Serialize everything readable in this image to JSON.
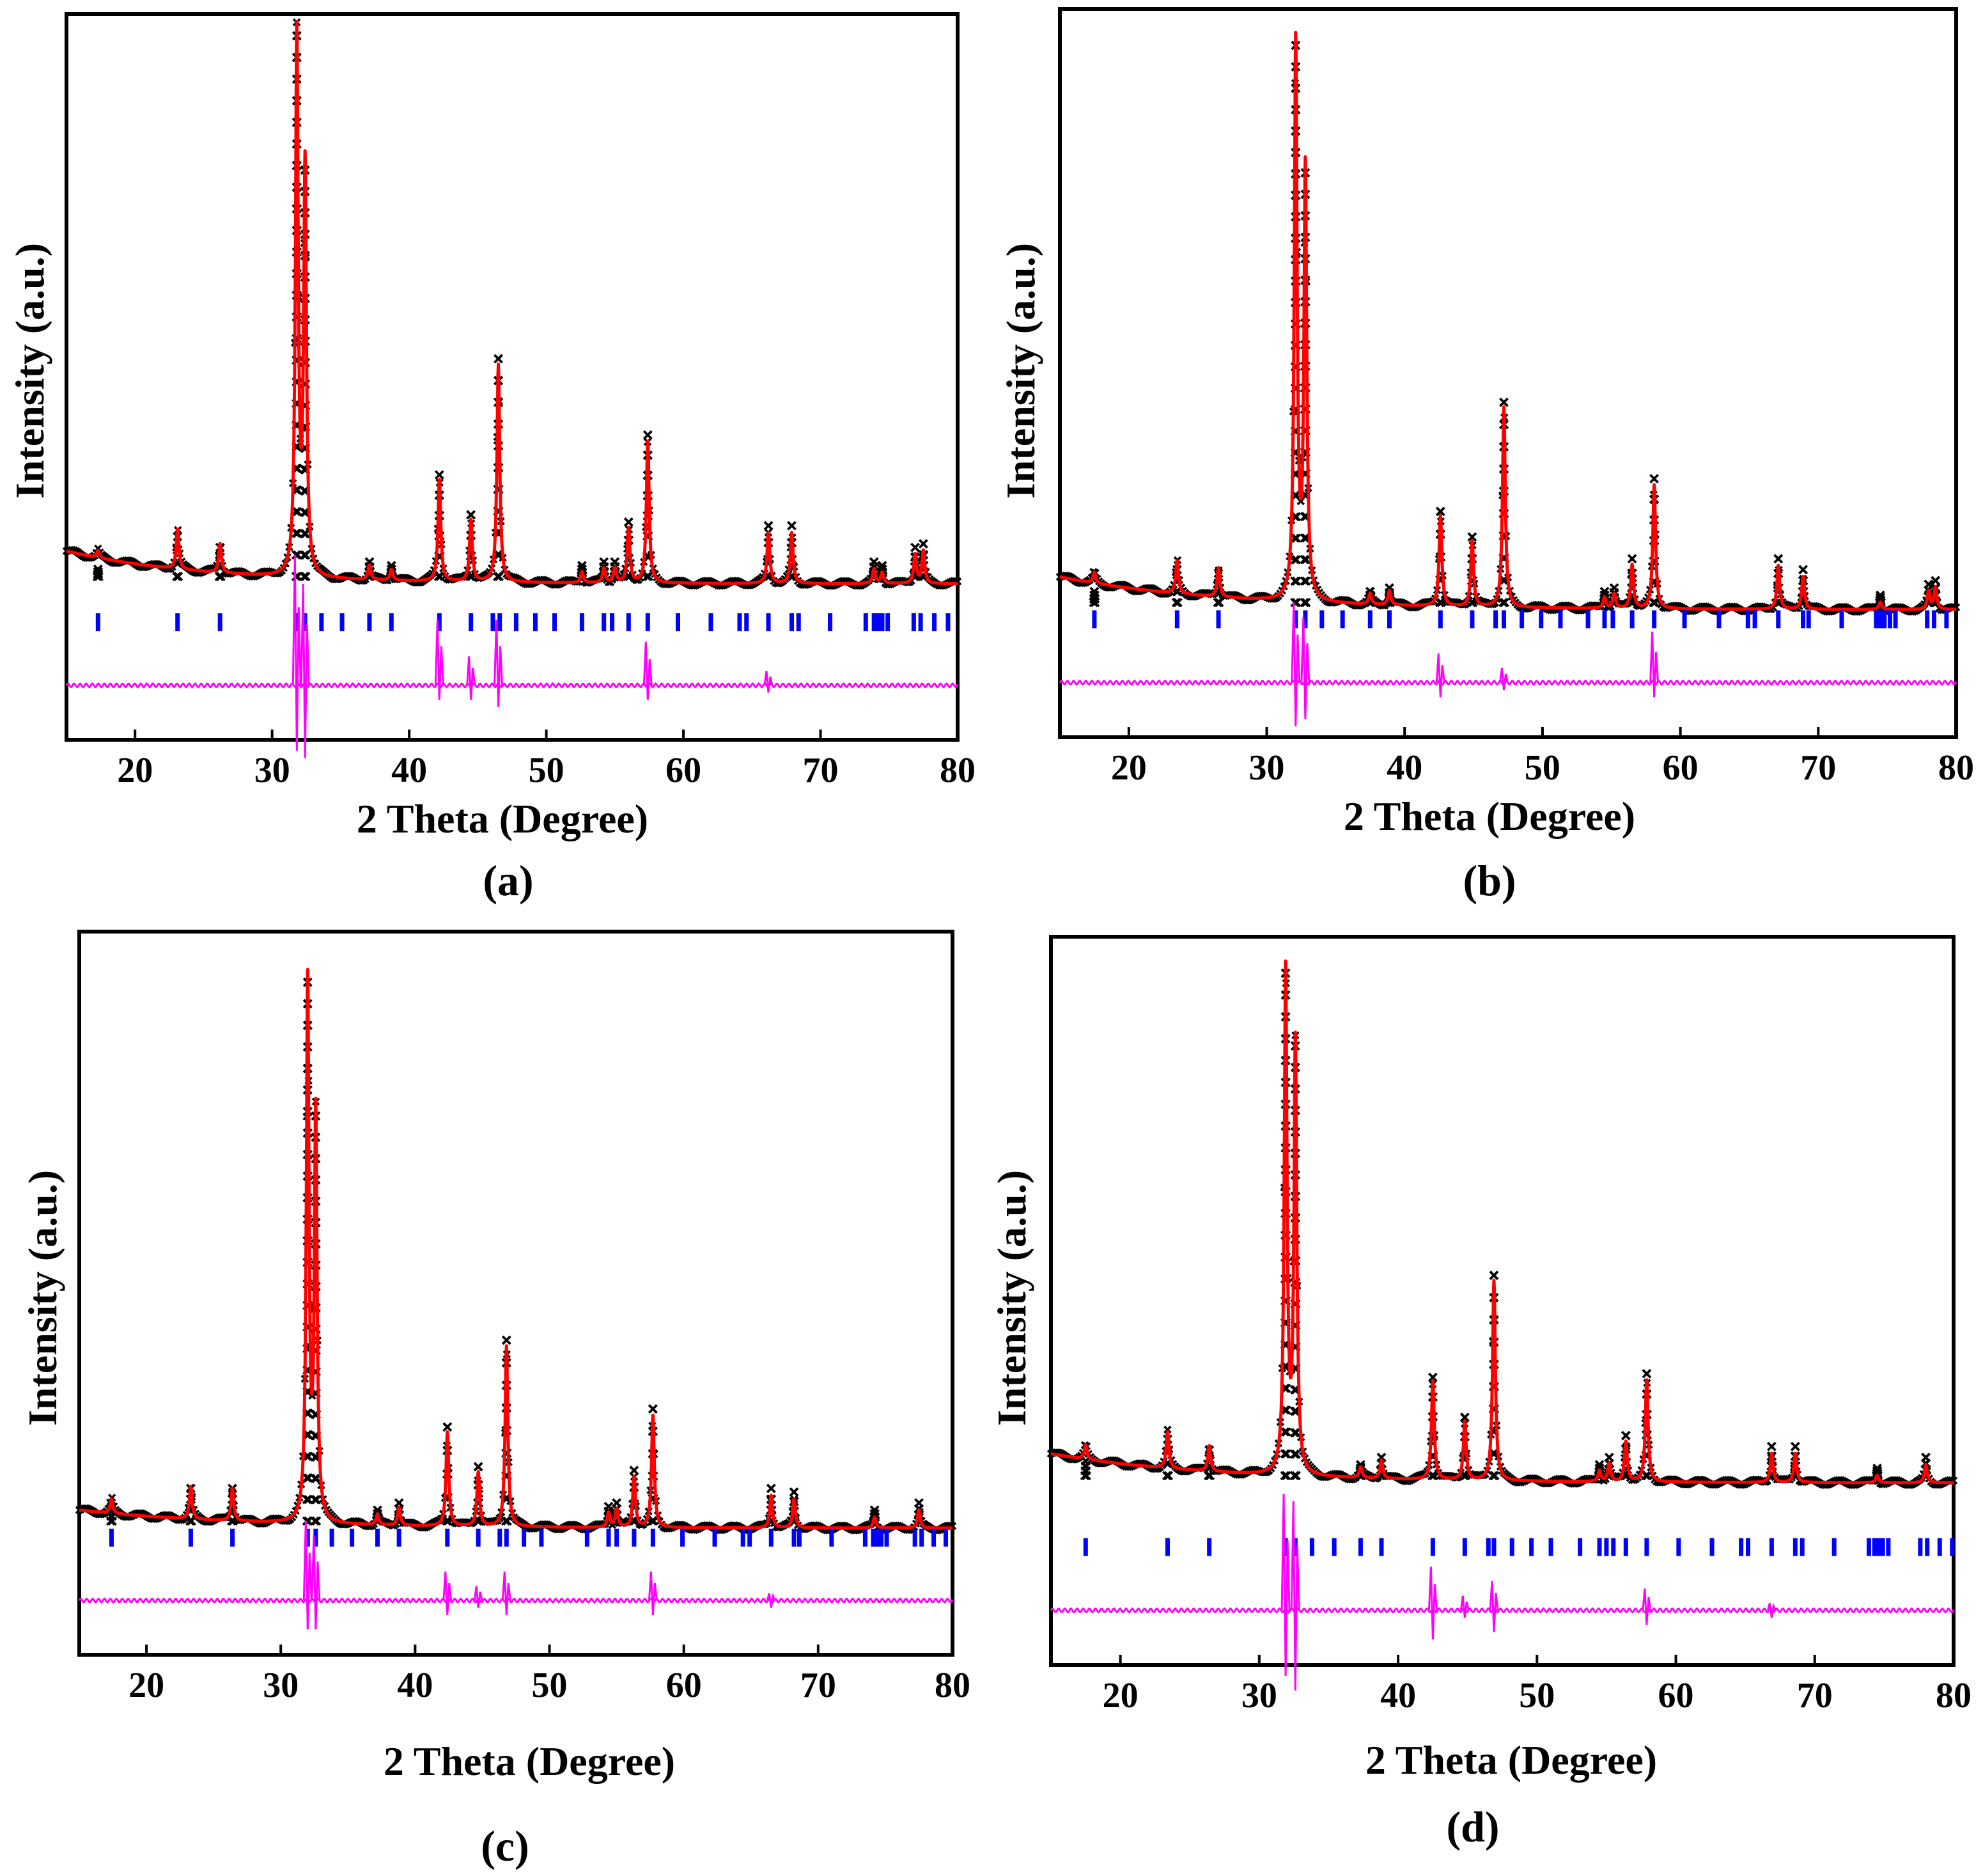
{
  "colors": {
    "observed": "#000000",
    "calculated": "#ff0000",
    "bragg": "#0000ff",
    "difference": "#ff00ff",
    "frame": "#000000"
  },
  "chart_data": [
    {
      "type": "line",
      "panel_label": "(a)",
      "xlabel": "2 Theta (Degree)",
      "ylabel": "Intensity (a.u.)",
      "xlim": [
        15,
        80
      ],
      "ylim": [
        0,
        100
      ],
      "xticks": [
        "20",
        "30",
        "40",
        "50",
        "60",
        "70",
        "80"
      ],
      "grid": false,
      "baseline": {
        "start": 26.0,
        "end": 21.5,
        "decay": 10
      },
      "peaks": [
        {
          "x": 17.3,
          "h": 1.0
        },
        {
          "x": 23.1,
          "h": 5.5
        },
        {
          "x": 26.2,
          "h": 4.0
        },
        {
          "x": 31.8,
          "h": 74.5
        },
        {
          "x": 32.4,
          "h": 56.0
        },
        {
          "x": 37.1,
          "h": 2.0
        },
        {
          "x": 38.7,
          "h": 1.5
        },
        {
          "x": 42.2,
          "h": 14.0
        },
        {
          "x": 44.5,
          "h": 8.5
        },
        {
          "x": 46.5,
          "h": 30.0
        },
        {
          "x": 52.6,
          "h": 1.5
        },
        {
          "x": 54.2,
          "h": 2.0
        },
        {
          "x": 55.0,
          "h": 2.0
        },
        {
          "x": 56.0,
          "h": 7.5
        },
        {
          "x": 57.4,
          "h": 19.5
        },
        {
          "x": 66.2,
          "h": 7.0
        },
        {
          "x": 67.9,
          "h": 7.0
        },
        {
          "x": 73.9,
          "h": 2.0
        },
        {
          "x": 74.5,
          "h": 1.5
        },
        {
          "x": 76.9,
          "h": 4.0
        },
        {
          "x": 77.5,
          "h": 4.5
        }
      ],
      "bragg_positions": [
        17.3,
        23.1,
        26.2,
        31.8,
        32.4,
        33.6,
        35.1,
        37.1,
        38.7,
        42.2,
        44.5,
        46.1,
        46.6,
        47.8,
        49.2,
        50.6,
        52.6,
        54.2,
        54.8,
        56.0,
        57.4,
        59.6,
        62.0,
        64.1,
        64.6,
        66.2,
        67.9,
        68.4,
        70.7,
        73.3,
        73.9,
        74.2,
        74.5,
        74.9,
        76.8,
        77.3,
        78.3,
        79.3
      ],
      "diff_spikes": [
        {
          "x": 31.8,
          "up": 18,
          "down": 9
        },
        {
          "x": 32.4,
          "up": 14,
          "down": 10
        },
        {
          "x": 42.2,
          "up": 9,
          "down": 2
        },
        {
          "x": 44.5,
          "up": 4,
          "down": 2
        },
        {
          "x": 46.5,
          "up": 9,
          "down": 3
        },
        {
          "x": 57.4,
          "up": 6,
          "down": 2
        },
        {
          "x": 66.2,
          "up": 2,
          "down": 1
        }
      ]
    },
    {
      "type": "line",
      "panel_label": "(b)",
      "xlabel": "2 Theta (Degree)",
      "ylabel": "Intensity (a.u.)",
      "xlim": [
        15,
        80
      ],
      "ylim": [
        0,
        100
      ],
      "xticks": [
        "20",
        "30",
        "40",
        "50",
        "60",
        "70",
        "80"
      ],
      "grid": false,
      "baseline": {
        "start": 22.0,
        "end": 17.5,
        "decay": 12
      },
      "peaks": [
        {
          "x": 17.5,
          "h": 1.5
        },
        {
          "x": 23.5,
          "h": 4.5
        },
        {
          "x": 26.5,
          "h": 4.0
        },
        {
          "x": 32.1,
          "h": 76.5
        },
        {
          "x": 32.8,
          "h": 59.0
        },
        {
          "x": 37.5,
          "h": 1.5
        },
        {
          "x": 38.9,
          "h": 2.0
        },
        {
          "x": 42.6,
          "h": 12.5
        },
        {
          "x": 44.9,
          "h": 9.0
        },
        {
          "x": 47.2,
          "h": 27.5
        },
        {
          "x": 54.5,
          "h": 1.5
        },
        {
          "x": 55.2,
          "h": 2.0
        },
        {
          "x": 56.5,
          "h": 6.0
        },
        {
          "x": 58.1,
          "h": 17.0
        },
        {
          "x": 67.1,
          "h": 6.0
        },
        {
          "x": 68.9,
          "h": 4.5
        },
        {
          "x": 74.5,
          "h": 1.0
        },
        {
          "x": 78.0,
          "h": 2.5
        },
        {
          "x": 78.5,
          "h": 3.0
        }
      ],
      "bragg_positions": [
        17.5,
        23.5,
        26.5,
        32.1,
        32.8,
        34.0,
        35.5,
        37.5,
        38.9,
        42.6,
        44.9,
        46.6,
        47.2,
        48.5,
        49.9,
        51.3,
        53.3,
        54.5,
        55.1,
        56.5,
        58.1,
        60.3,
        62.8,
        64.9,
        65.4,
        67.1,
        68.9,
        69.3,
        71.7,
        74.2,
        74.5,
        74.8,
        75.2,
        75.6,
        77.9,
        78.4,
        79.3
      ],
      "diff_spikes": [
        {
          "x": 32.1,
          "up": 11,
          "down": 6
        },
        {
          "x": 32.8,
          "up": 9,
          "down": 5
        },
        {
          "x": 42.6,
          "up": 4,
          "down": 2
        },
        {
          "x": 47.2,
          "up": 2,
          "down": 1
        },
        {
          "x": 58.1,
          "up": 7,
          "down": 2
        }
      ]
    },
    {
      "type": "line",
      "panel_label": "(c)",
      "xlabel": "2 Theta (Degree)",
      "ylabel": "Intensity (a.u.)",
      "xlim": [
        15,
        80
      ],
      "ylim": [
        0,
        100
      ],
      "xticks": [
        "20",
        "30",
        "40",
        "50",
        "60",
        "70",
        "80"
      ],
      "grid": false,
      "baseline": {
        "start": 20.0,
        "end": 17.5,
        "decay": 12
      },
      "peaks": [
        {
          "x": 17.4,
          "h": 2.0
        },
        {
          "x": 23.3,
          "h": 4.5
        },
        {
          "x": 26.4,
          "h": 4.5
        },
        {
          "x": 32.0,
          "h": 74.5
        },
        {
          "x": 32.6,
          "h": 56.0
        },
        {
          "x": 37.2,
          "h": 1.5
        },
        {
          "x": 38.8,
          "h": 2.5
        },
        {
          "x": 42.4,
          "h": 13.0
        },
        {
          "x": 44.7,
          "h": 7.5
        },
        {
          "x": 46.8,
          "h": 25.0
        },
        {
          "x": 54.4,
          "h": 2.0
        },
        {
          "x": 55.0,
          "h": 2.5
        },
        {
          "x": 56.3,
          "h": 7.0
        },
        {
          "x": 57.7,
          "h": 15.5
        },
        {
          "x": 66.5,
          "h": 4.5
        },
        {
          "x": 68.2,
          "h": 4.0
        },
        {
          "x": 74.2,
          "h": 1.5
        },
        {
          "x": 77.5,
          "h": 2.5
        }
      ],
      "bragg_positions": [
        17.4,
        23.3,
        26.4,
        32.0,
        32.6,
        33.8,
        35.3,
        37.2,
        38.8,
        42.4,
        44.7,
        46.3,
        46.8,
        48.1,
        49.4,
        52.8,
        54.4,
        55.0,
        56.3,
        57.7,
        59.9,
        62.3,
        64.4,
        64.9,
        66.5,
        68.2,
        68.6,
        71.0,
        73.5,
        74.1,
        74.4,
        74.7,
        75.1,
        77.2,
        77.7,
        78.6,
        79.5
      ],
      "diff_spikes": [
        {
          "x": 32.0,
          "up": 11,
          "down": 4
        },
        {
          "x": 32.6,
          "up": 9,
          "down": 4
        },
        {
          "x": 42.4,
          "up": 4,
          "down": 2
        },
        {
          "x": 44.7,
          "up": 2,
          "down": 1
        },
        {
          "x": 46.8,
          "up": 4,
          "down": 2
        },
        {
          "x": 57.7,
          "up": 4,
          "down": 2
        },
        {
          "x": 66.5,
          "up": 1,
          "down": 1
        }
      ]
    },
    {
      "type": "line",
      "panel_label": "(d)",
      "xlabel": "2 Theta (Degree)",
      "ylabel": "Intensity (a.u.)",
      "xlim": [
        15,
        80
      ],
      "ylim": [
        0,
        100
      ],
      "xticks": [
        "20",
        "30",
        "40",
        "50",
        "60",
        "70",
        "80"
      ],
      "grid": false,
      "baseline": {
        "start": 29.0,
        "end": 25.0,
        "decay": 12
      },
      "peaks": [
        {
          "x": 17.5,
          "h": 2.0
        },
        {
          "x": 23.4,
          "h": 5.0
        },
        {
          "x": 26.4,
          "h": 3.5
        },
        {
          "x": 31.9,
          "h": 69.0
        },
        {
          "x": 32.6,
          "h": 59.0
        },
        {
          "x": 37.3,
          "h": 1.5
        },
        {
          "x": 38.8,
          "h": 2.5
        },
        {
          "x": 42.5,
          "h": 13.5
        },
        {
          "x": 44.8,
          "h": 8.0
        },
        {
          "x": 46.9,
          "h": 27.5
        },
        {
          "x": 54.5,
          "h": 1.5
        },
        {
          "x": 55.2,
          "h": 2.5
        },
        {
          "x": 56.4,
          "h": 5.5
        },
        {
          "x": 57.9,
          "h": 14.0
        },
        {
          "x": 66.9,
          "h": 4.0
        },
        {
          "x": 68.6,
          "h": 4.0
        },
        {
          "x": 74.5,
          "h": 1.0
        },
        {
          "x": 78.0,
          "h": 2.5
        }
      ],
      "bragg_positions": [
        17.5,
        23.4,
        26.4,
        31.9,
        32.6,
        33.8,
        35.4,
        37.3,
        38.8,
        42.5,
        44.8,
        46.5,
        46.9,
        48.2,
        49.6,
        51.0,
        53.1,
        54.5,
        55.0,
        55.5,
        56.4,
        57.9,
        60.2,
        62.6,
        64.7,
        65.2,
        66.9,
        68.6,
        69.1,
        71.4,
        73.9,
        74.3,
        74.6,
        74.9,
        75.3,
        77.6,
        78.1,
        79.0,
        79.9
      ],
      "diff_spikes": [
        {
          "x": 31.9,
          "up": 16,
          "down": 9
        },
        {
          "x": 32.6,
          "up": 15,
          "down": 11
        },
        {
          "x": 42.5,
          "up": 6,
          "down": 4
        },
        {
          "x": 44.8,
          "up": 2,
          "down": 1
        },
        {
          "x": 46.9,
          "up": 4,
          "down": 3
        },
        {
          "x": 57.9,
          "up": 3,
          "down": 2
        },
        {
          "x": 66.9,
          "up": 1,
          "down": 1
        }
      ]
    }
  ]
}
